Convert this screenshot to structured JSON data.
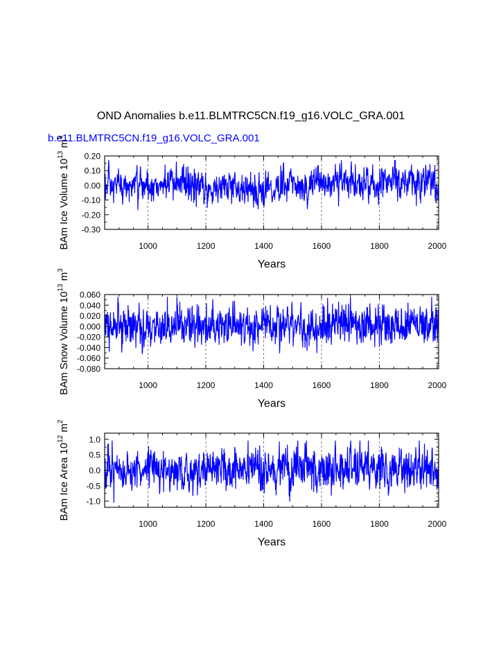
{
  "figure": {
    "title": "OND Anomalies b.e11.BLMTRC5CN.f19_g16.VOLC_GRA.001",
    "case_label": "b.e11.BLMTRC5CN.f19_g16.VOLC_GRA.001",
    "colors": {
      "series": "#0000ff",
      "axes": "#000000",
      "grid": "#555555",
      "case_label": "#0000ff"
    }
  },
  "chart_data": [
    {
      "type": "line",
      "title": "",
      "xlabel": "Years",
      "ylabel": "BAm Ice Volume 10",
      "ylabel_sup": "13",
      "ylabel_unit": "m",
      "ylabel_unit_sup": "3",
      "xlim": [
        850,
        2005
      ],
      "ylim": [
        -0.3,
        0.2
      ],
      "xticks": [
        1000,
        1200,
        1400,
        1600,
        1800,
        2000
      ],
      "xtick_labels": [
        "1000",
        "1200",
        "1400",
        "1600",
        "1800",
        "2000"
      ],
      "yticks": [
        -0.3,
        -0.2,
        -0.1,
        0.0,
        0.1,
        0.2
      ],
      "ytick_labels": [
        "-0.30",
        "-0.20",
        "-0.10",
        "0.00",
        "0.10",
        "0.20"
      ],
      "grid_x": [
        1000,
        1200,
        1400,
        1600,
        1800,
        2000
      ],
      "series": [
        {
          "name": "BAm Ice Volume",
          "x_start": 850,
          "x_step": 1,
          "trend": [
            [
              850,
              -0.02
            ],
            [
              1000,
              0.0
            ],
            [
              1100,
              0.01
            ],
            [
              1200,
              -0.02
            ],
            [
              1300,
              -0.01
            ],
            [
              1400,
              -0.03
            ],
            [
              1500,
              0.0
            ],
            [
              1600,
              0.02
            ],
            [
              1700,
              0.03
            ],
            [
              1750,
              -0.01
            ],
            [
              1800,
              0.01
            ],
            [
              1850,
              0.04
            ],
            [
              1950,
              0.02
            ],
            [
              2005,
              0.0
            ]
          ],
          "amplitude": 0.055,
          "min": -0.21,
          "max": 0.17
        }
      ]
    },
    {
      "type": "line",
      "title": "",
      "xlabel": "Years",
      "ylabel": "BAm Snow Volume 10",
      "ylabel_sup": "13",
      "ylabel_unit": "m",
      "ylabel_unit_sup": "3",
      "xlim": [
        850,
        2005
      ],
      "ylim": [
        -0.08,
        0.06
      ],
      "xticks": [
        1000,
        1200,
        1400,
        1600,
        1800,
        2000
      ],
      "xtick_labels": [
        "1000",
        "1200",
        "1400",
        "1600",
        "1800",
        "2000"
      ],
      "yticks": [
        -0.08,
        -0.06,
        -0.04,
        -0.02,
        0.0,
        0.02,
        0.04,
        0.06
      ],
      "ytick_labels": [
        "-0.080",
        "-0.060",
        "-0.040",
        "-0.020",
        "0.000",
        "0.020",
        "0.040",
        "0.060"
      ],
      "grid_x": [
        1000,
        1200,
        1400,
        1600,
        1800,
        2000
      ],
      "series": [
        {
          "name": "BAm Snow Volume",
          "x_start": 850,
          "x_step": 1,
          "trend": [
            [
              850,
              -0.005
            ],
            [
              1000,
              0.0
            ],
            [
              1200,
              0.0
            ],
            [
              1400,
              -0.002
            ],
            [
              1600,
              0.003
            ],
            [
              1800,
              0.004
            ],
            [
              2005,
              0.0
            ]
          ],
          "amplitude": 0.018,
          "min": -0.066,
          "max": 0.055
        }
      ]
    },
    {
      "type": "line",
      "title": "",
      "xlabel": "Years",
      "ylabel": "BAm Ice Area 10",
      "ylabel_sup": "12",
      "ylabel_unit": "m",
      "ylabel_unit_sup": "2",
      "xlim": [
        850,
        2005
      ],
      "ylim": [
        -1.2,
        1.2
      ],
      "xticks": [
        1000,
        1200,
        1400,
        1600,
        1800,
        2000
      ],
      "xtick_labels": [
        "1000",
        "1200",
        "1400",
        "1600",
        "1800",
        "2000"
      ],
      "yticks": [
        -1.0,
        -0.5,
        0.0,
        0.5,
        1.0
      ],
      "ytick_labels": [
        "-1.0",
        "-0.5",
        "0.0",
        "0.5",
        "1.0"
      ],
      "grid_x": [
        1000,
        1200,
        1400,
        1600,
        1800,
        2000
      ],
      "series": [
        {
          "name": "BAm Ice Area",
          "x_start": 850,
          "x_step": 1,
          "trend": [
            [
              850,
              -0.05
            ],
            [
              1000,
              0.0
            ],
            [
              1200,
              0.0
            ],
            [
              1400,
              0.0
            ],
            [
              1600,
              0.05
            ],
            [
              1700,
              0.1
            ],
            [
              1800,
              0.05
            ],
            [
              2005,
              0.0
            ]
          ],
          "amplitude": 0.32,
          "min": -1.05,
          "max": 0.95
        }
      ]
    }
  ]
}
